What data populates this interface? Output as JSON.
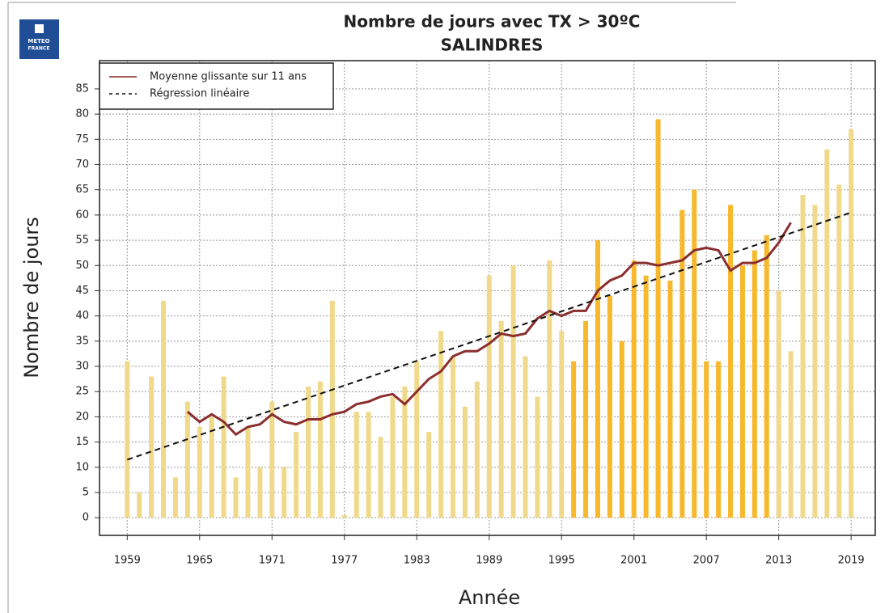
{
  "logo": {
    "line1": "METEO",
    "line2": "FRANCE"
  },
  "chart_data": {
    "type": "bar",
    "title": "Nombre de jours avec TX > 30ºC",
    "subtitle": "SALINDRES",
    "ylabel": "Nombre de jours",
    "xlabel": "Année",
    "x": [
      1959,
      1960,
      1961,
      1962,
      1963,
      1964,
      1965,
      1966,
      1967,
      1968,
      1969,
      1970,
      1971,
      1972,
      1973,
      1974,
      1975,
      1976,
      1977,
      1978,
      1979,
      1980,
      1981,
      1982,
      1983,
      1984,
      1985,
      1986,
      1987,
      1988,
      1989,
      1990,
      1991,
      1992,
      1993,
      1994,
      1995,
      1996,
      1997,
      1998,
      1999,
      2000,
      2001,
      2002,
      2003,
      2004,
      2005,
      2006,
      2007,
      2008,
      2009,
      2010,
      2011,
      2012,
      2013,
      2014,
      2015,
      2016,
      2017,
      2018,
      2019
    ],
    "values": [
      31,
      5,
      28,
      43,
      8,
      23,
      18,
      20,
      28,
      8,
      18,
      10,
      23,
      10,
      17,
      26,
      27,
      43,
      0.5,
      21,
      21,
      16,
      24,
      26,
      31,
      17,
      37,
      32,
      22,
      27,
      48,
      39,
      50,
      32,
      24,
      51,
      37,
      31,
      39,
      55,
      44,
      35,
      51,
      48,
      79,
      47,
      61,
      65,
      31,
      31,
      62,
      50,
      53,
      56,
      45,
      33,
      64,
      62,
      73,
      66,
      77
    ],
    "colors": [
      "#f0d98a",
      "#f0d98a",
      "#f0d98a",
      "#f0d98a",
      "#f0d98a",
      "#f0d98a",
      "#f0d98a",
      "#f0d98a",
      "#f0d98a",
      "#f0d98a",
      "#f0d98a",
      "#f0d98a",
      "#f0d98a",
      "#f0d98a",
      "#f0d98a",
      "#f0d98a",
      "#f0d98a",
      "#f0d98a",
      "#f0d98a",
      "#f0d98a",
      "#f0d98a",
      "#f0d98a",
      "#f0d98a",
      "#f0d98a",
      "#f0d98a",
      "#f0d98a",
      "#f0d98a",
      "#f0d98a",
      "#f0d98a",
      "#f0d98a",
      "#f0d98a",
      "#f0d98a",
      "#f0d98a",
      "#f0d98a",
      "#f0d98a",
      "#f0d98a",
      "#f0d98a",
      "#f7b82c",
      "#f7b82c",
      "#f7b82c",
      "#f7b82c",
      "#f7b82c",
      "#f7b82c",
      "#f7b82c",
      "#f7b82c",
      "#f7b82c",
      "#f7b82c",
      "#f7b82c",
      "#f7b82c",
      "#f7b82c",
      "#f7b82c",
      "#f7b82c",
      "#f7b82c",
      "#f7b82c",
      "#f0d98a",
      "#f0d98a",
      "#f0d98a",
      "#f0d98a",
      "#f0d98a",
      "#f0d98a",
      "#f0d98a"
    ],
    "series": [
      {
        "name": "Moyenne glissante sur 11 ans",
        "color": "#8b2e2e",
        "dash": false,
        "x": [
          1964,
          1965,
          1966,
          1967,
          1968,
          1969,
          1970,
          1971,
          1972,
          1973,
          1974,
          1975,
          1976,
          1977,
          1978,
          1979,
          1980,
          1981,
          1982,
          1983,
          1984,
          1985,
          1986,
          1987,
          1988,
          1989,
          1990,
          1991,
          1992,
          1993,
          1994,
          1995,
          1996,
          1997,
          1998,
          1999,
          2000,
          2001,
          2002,
          2003,
          2004,
          2005,
          2006,
          2007,
          2008,
          2009,
          2010,
          2011,
          2012,
          2013,
          2014
        ],
        "values": [
          21,
          19,
          20.5,
          19,
          16.5,
          18,
          18.5,
          20.5,
          19,
          18.5,
          19.5,
          19.5,
          20.5,
          21,
          22.5,
          23,
          24,
          24.5,
          22.5,
          25,
          27.5,
          29,
          32,
          33,
          33,
          34.5,
          36.5,
          36,
          36.5,
          39.5,
          41,
          40,
          41,
          41,
          45,
          47,
          48,
          50.5,
          50.5,
          50,
          50.5,
          51,
          53,
          53.5,
          53,
          49,
          50.5,
          50.5,
          51.5,
          54.5,
          58.5
        ]
      },
      {
        "name": "Régression linéaire",
        "color": "#111111",
        "dash": true,
        "x": [
          1959,
          2019
        ],
        "values": [
          11.5,
          60.5
        ]
      }
    ],
    "xlim": [
      1956.7,
      2021
    ],
    "ylim": [
      -3.5,
      90.6
    ],
    "xticks": [
      1959,
      1965,
      1971,
      1977,
      1983,
      1989,
      1995,
      2001,
      2007,
      2013,
      2019
    ],
    "yticks": [
      0,
      5,
      10,
      15,
      20,
      25,
      30,
      35,
      40,
      45,
      50,
      55,
      60,
      65,
      70,
      75,
      80,
      85
    ],
    "grid": true,
    "legend": "top-left"
  }
}
